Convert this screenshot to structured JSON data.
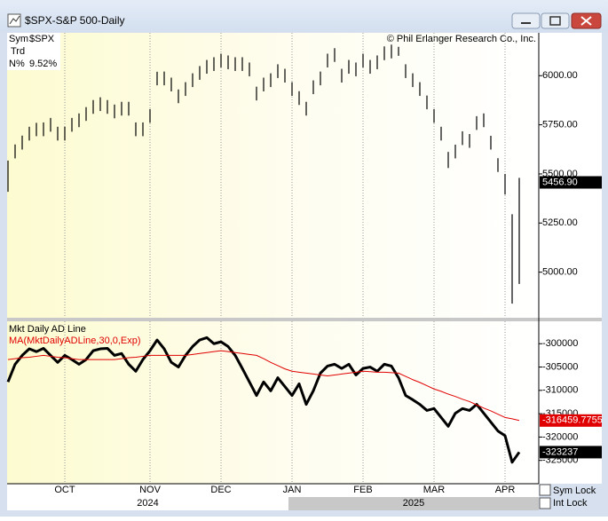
{
  "window": {
    "title": "$SPX-S&P 500-Daily"
  },
  "info": {
    "sym_label": "Sym",
    "sym": "$SPX",
    "trd_label": "Trd",
    "n_label": "N%",
    "n_value": "9.52%"
  },
  "copyright": "© Phil Erlanger Research Co., Inc.",
  "controls": {
    "sym_lock": "Sym Lock",
    "int_lock": "Int Lock"
  },
  "chart_data": [
    {
      "type": "ohlc",
      "color": "#000000",
      "high": [
        5568,
        5650,
        5695,
        5740,
        5760,
        5762,
        5785,
        5740,
        5740,
        5785,
        5808,
        5840,
        5876,
        5890,
        5876,
        5853,
        5867,
        5867,
        5762,
        5762,
        5830,
        6020,
        6021,
        5990,
        5930,
        5967,
        6012,
        6049,
        6080,
        6094,
        6112,
        6103,
        6094,
        6094,
        6067,
        5944,
        5990,
        6012,
        6058,
        6035,
        5967,
        5921,
        5867,
        5976,
        6021,
        6112,
        6140,
        6035,
        6080,
        6067,
        6112,
        6080,
        6103,
        6149,
        6158,
        6147,
        6058,
        6012,
        5967,
        5899,
        5830,
        5740,
        5612,
        5649,
        5717,
        5703,
        5794,
        5808,
        5694,
        5580,
        5500,
        5295,
        5480
      ],
      "low": [
        5409,
        5579,
        5624,
        5670,
        5692,
        5692,
        5715,
        5670,
        5670,
        5715,
        5738,
        5770,
        5806,
        5820,
        5806,
        5783,
        5797,
        5797,
        5692,
        5692,
        5760,
        5951,
        5951,
        5920,
        5860,
        5897,
        5942,
        5979,
        6010,
        6024,
        6042,
        6033,
        6024,
        6024,
        5997,
        5874,
        5920,
        5942,
        5988,
        5965,
        5897,
        5851,
        5797,
        5906,
        5951,
        6042,
        6070,
        5965,
        6010,
        5997,
        6042,
        6010,
        6033,
        6079,
        6088,
        6101,
        5988,
        5942,
        5897,
        5829,
        5760,
        5670,
        5530,
        5579,
        5647,
        5633,
        5724,
        5738,
        5624,
        5510,
        5395,
        4840,
        4940
      ],
      "ylim": [
        4768,
        6218
      ],
      "yticks": [
        {
          "value": 5000,
          "label": "5000.00"
        },
        {
          "value": 5250,
          "label": "5250.00"
        },
        {
          "value": 5500,
          "label": "5500.00"
        },
        {
          "value": 5750,
          "label": "5750.00"
        },
        {
          "value": 6000,
          "label": "6000.00"
        }
      ],
      "last": {
        "value": 5456.9,
        "label": "5456.90"
      }
    },
    {
      "type": "line",
      "categories": [
        null,
        null,
        null,
        null,
        null,
        null,
        null,
        null,
        "OCT",
        null,
        null,
        null,
        null,
        null,
        null,
        null,
        null,
        null,
        null,
        null,
        "NOV",
        null,
        null,
        null,
        null,
        null,
        null,
        null,
        null,
        null,
        "DEC",
        null,
        null,
        null,
        null,
        null,
        null,
        null,
        null,
        null,
        "JAN",
        null,
        null,
        null,
        null,
        null,
        null,
        null,
        null,
        null,
        "FEB",
        null,
        null,
        null,
        null,
        null,
        null,
        null,
        null,
        null,
        "MAR",
        null,
        null,
        null,
        null,
        null,
        null,
        null,
        null,
        null,
        "APR",
        null,
        null
      ],
      "year_labels": [
        "2024",
        "2025"
      ],
      "series": [
        {
          "name": "Mkt Daily AD Line",
          "color": "#000000",
          "values": [
            -308200,
            -304400,
            -302500,
            -301100,
            -301700,
            -301000,
            -302500,
            -304000,
            -302500,
            -303400,
            -304400,
            -303400,
            -301500,
            -301100,
            -301000,
            -302500,
            -302100,
            -304400,
            -305900,
            -303400,
            -301500,
            -299200,
            -301100,
            -304000,
            -305000,
            -302500,
            -300600,
            -299200,
            -298700,
            -300000,
            -299600,
            -300600,
            -302500,
            -305300,
            -308200,
            -311100,
            -308200,
            -310100,
            -307300,
            -309200,
            -311100,
            -308600,
            -313000,
            -310100,
            -306300,
            -304800,
            -304400,
            -305300,
            -304400,
            -306700,
            -305300,
            -305000,
            -305900,
            -304400,
            -304800,
            -307300,
            -311100,
            -312000,
            -313000,
            -314300,
            -313900,
            -315800,
            -317700,
            -314900,
            -313900,
            -314300,
            -313000,
            -314900,
            -316800,
            -318700,
            -319700,
            -325400,
            -323237
          ]
        },
        {
          "name": "MA(MktDailyADLine,30,0,Exp)",
          "color": "#e00000",
          "values": [
            -303400,
            -303200,
            -303000,
            -302900,
            -302700,
            -302500,
            -302700,
            -302900,
            -303000,
            -303200,
            -303400,
            -303400,
            -303400,
            -303400,
            -303400,
            -303400,
            -303200,
            -303000,
            -302900,
            -302700,
            -302500,
            -302500,
            -302500,
            -302500,
            -302500,
            -302500,
            -302300,
            -302100,
            -301900,
            -301700,
            -301500,
            -301700,
            -301900,
            -302100,
            -302300,
            -302500,
            -303200,
            -304000,
            -304700,
            -305400,
            -305900,
            -306100,
            -306300,
            -306500,
            -306700,
            -306900,
            -306700,
            -306500,
            -306300,
            -306100,
            -305900,
            -306000,
            -306100,
            -306100,
            -306200,
            -306300,
            -307000,
            -307700,
            -308300,
            -309000,
            -309700,
            -310200,
            -310800,
            -311300,
            -311900,
            -312400,
            -313100,
            -313800,
            -314400,
            -315100,
            -315800,
            -316100,
            -316459.7755
          ]
        }
      ],
      "ylim": [
        -330000,
        -295200
      ],
      "yticks": [
        -300000,
        -305000,
        -310000,
        -315000,
        -320000,
        -325000
      ],
      "grid": true
    }
  ]
}
